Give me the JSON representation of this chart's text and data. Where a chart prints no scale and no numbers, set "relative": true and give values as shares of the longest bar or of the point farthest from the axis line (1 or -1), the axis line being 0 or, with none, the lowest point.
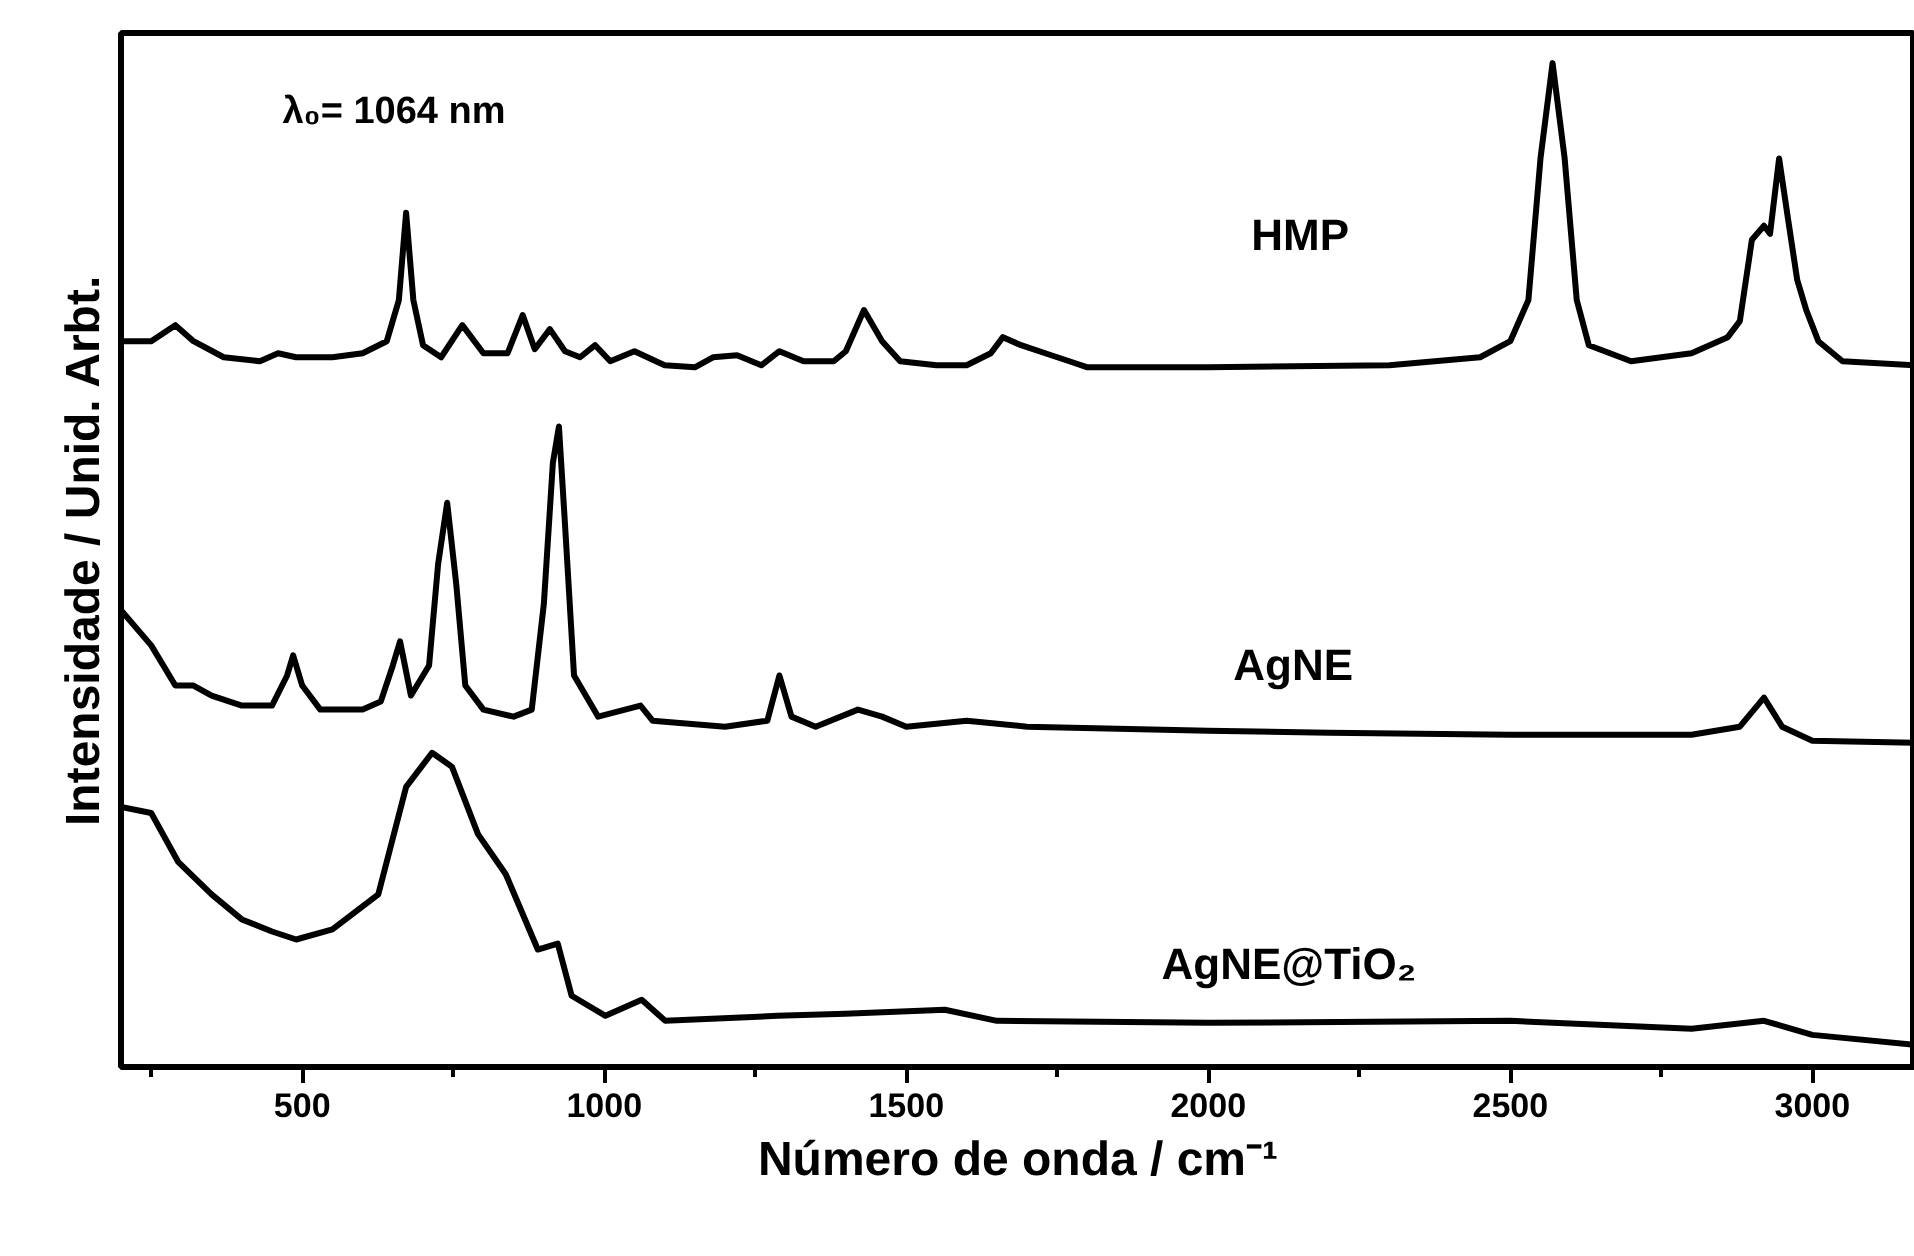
{
  "chart_data": {
    "type": "line",
    "relative": true,
    "xlabel": "Número de onda / cm⁻¹",
    "ylabel": "Intensidade / Unid. Arbt.",
    "annotations": [
      "λ₀= 1064 nm"
    ],
    "xlim": [
      200,
      3170
    ],
    "xticks": [
      500,
      1000,
      1500,
      2000,
      2500,
      3000
    ],
    "grid": false,
    "legend": false,
    "marker": "none",
    "line_style": "solid",
    "series": [
      {
        "name": "HMP",
        "color": "#000000",
        "x": [
          200,
          250,
          290,
          320,
          370,
          430,
          460,
          490,
          550,
          600,
          640,
          660,
          672,
          684,
          700,
          730,
          765,
          800,
          840,
          865,
          885,
          910,
          935,
          960,
          985,
          1010,
          1050,
          1100,
          1150,
          1180,
          1220,
          1260,
          1290,
          1330,
          1380,
          1400,
          1430,
          1460,
          1490,
          1550,
          1600,
          1640,
          1660,
          1690,
          1740,
          1770,
          1800,
          2000,
          2300,
          2450,
          2500,
          2530,
          2550,
          2570,
          2590,
          2610,
          2630,
          2700,
          2800,
          2860,
          2880,
          2900,
          2920,
          2930,
          2945,
          2960,
          2975,
          2990,
          3010,
          3050,
          3170
        ],
        "values": [
          0.723,
          0.723,
          0.739,
          0.723,
          0.707,
          0.703,
          0.711,
          0.707,
          0.707,
          0.711,
          0.723,
          0.764,
          0.851,
          0.764,
          0.719,
          0.707,
          0.739,
          0.711,
          0.711,
          0.749,
          0.715,
          0.735,
          0.713,
          0.707,
          0.719,
          0.703,
          0.713,
          0.699,
          0.697,
          0.707,
          0.709,
          0.699,
          0.713,
          0.703,
          0.703,
          0.713,
          0.754,
          0.723,
          0.703,
          0.699,
          0.699,
          0.711,
          0.727,
          0.719,
          0.709,
          0.703,
          0.697,
          0.697,
          0.699,
          0.707,
          0.723,
          0.764,
          0.905,
          1.0,
          0.905,
          0.764,
          0.719,
          0.703,
          0.711,
          0.727,
          0.743,
          0.824,
          0.838,
          0.83,
          0.905,
          0.844,
          0.784,
          0.754,
          0.723,
          0.703,
          0.699
        ]
      },
      {
        "name": "AgNE",
        "color": "#000000",
        "x": [
          200,
          250,
          290,
          320,
          350,
          400,
          450,
          475,
          485,
          500,
          530,
          600,
          630,
          650,
          662,
          680,
          710,
          725,
          740,
          755,
          770,
          800,
          850,
          880,
          900,
          915,
          925,
          935,
          950,
          990,
          1060,
          1080,
          1200,
          1270,
          1290,
          1310,
          1350,
          1420,
          1460,
          1500,
          1600,
          1700,
          2000,
          2200,
          2500,
          2800,
          2880,
          2920,
          2950,
          3000,
          3170
        ],
        "values": [
          0.455,
          0.42,
          0.38,
          0.38,
          0.37,
          0.36,
          0.36,
          0.39,
          0.41,
          0.38,
          0.356,
          0.356,
          0.364,
          0.4,
          0.424,
          0.37,
          0.4,
          0.501,
          0.562,
          0.481,
          0.38,
          0.356,
          0.349,
          0.356,
          0.461,
          0.602,
          0.638,
          0.541,
          0.39,
          0.349,
          0.36,
          0.345,
          0.339,
          0.345,
          0.39,
          0.349,
          0.339,
          0.356,
          0.349,
          0.339,
          0.345,
          0.339,
          0.335,
          0.333,
          0.331,
          0.331,
          0.339,
          0.368,
          0.339,
          0.325,
          0.323
        ]
      },
      {
        "name": "AgNE@TiO₂",
        "color": "#000000",
        "x": [
          200,
          250,
          295,
          350,
          400,
          450,
          490,
          550,
          626,
          672,
          715,
          748,
          791,
          837,
          890,
          923,
          946,
          1002,
          1062,
          1101,
          1287,
          1399,
          1564,
          1650,
          2000,
          2500,
          2800,
          2920,
          3000,
          3170
        ],
        "values": [
          0.259,
          0.253,
          0.204,
          0.172,
          0.147,
          0.135,
          0.127,
          0.137,
          0.172,
          0.279,
          0.313,
          0.299,
          0.232,
          0.192,
          0.117,
          0.123,
          0.071,
          0.051,
          0.067,
          0.046,
          0.051,
          0.053,
          0.057,
          0.046,
          0.044,
          0.046,
          0.038,
          0.046,
          0.032,
          0.022
        ]
      }
    ]
  }
}
